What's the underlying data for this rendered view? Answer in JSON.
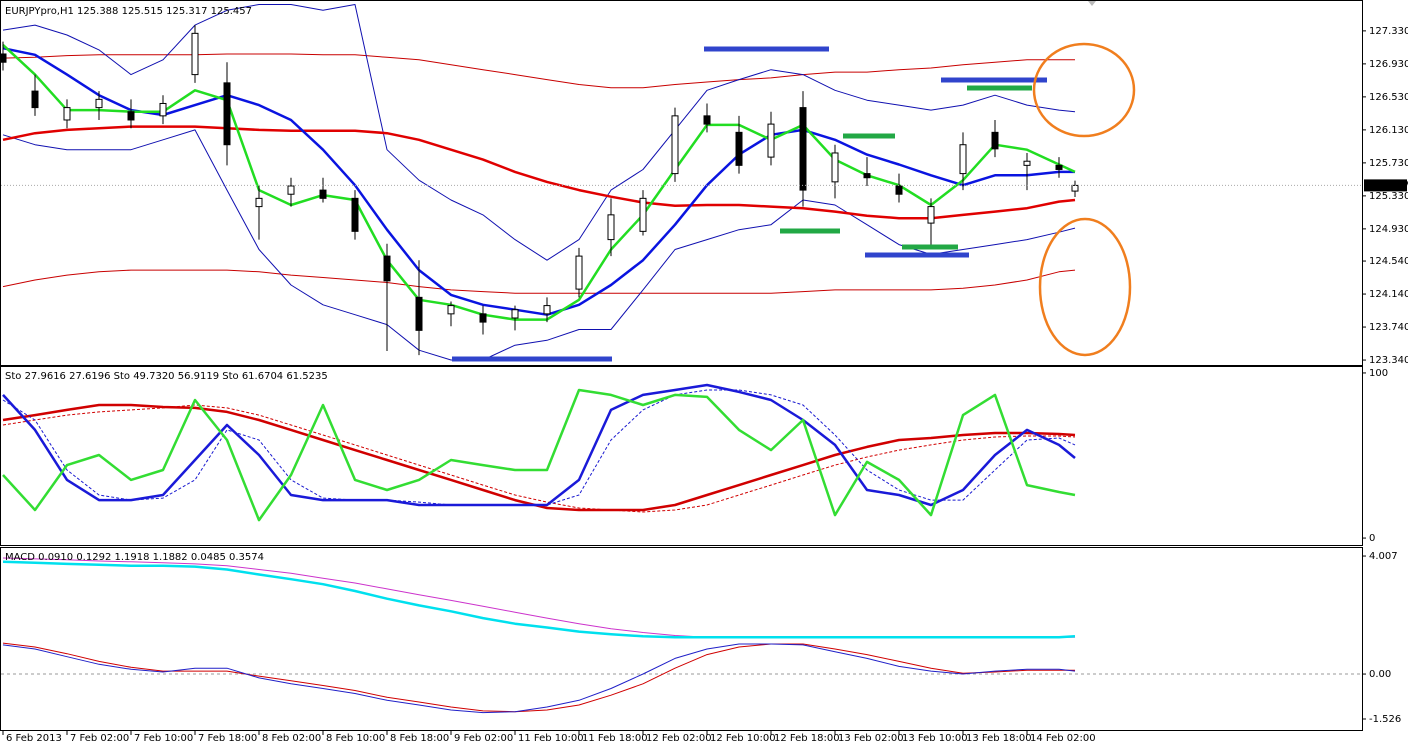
{
  "chart_data": [
    {
      "type": "candlestick",
      "title": "EURJPYpro,H1  125.388 125.515 125.317 125.457",
      "x": [
        0,
        4,
        8,
        12,
        16,
        20,
        24,
        28,
        32,
        36,
        40,
        44,
        48,
        52,
        56,
        60,
        64,
        68,
        72,
        76,
        80,
        84,
        88,
        92,
        96,
        100,
        104,
        108,
        112,
        116,
        120,
        124,
        128,
        132,
        134
      ],
      "xlim": [
        0,
        170
      ],
      "ylim": [
        123.28,
        127.68
      ],
      "yticks": [
        {
          "value": 127.33,
          "label": "127.330"
        },
        {
          "value": 126.93,
          "label": "126.930"
        },
        {
          "value": 126.53,
          "label": "126.530"
        },
        {
          "value": 126.13,
          "label": "126.130"
        },
        {
          "value": 125.73,
          "label": "125.730"
        },
        {
          "value": 125.33,
          "label": "125.330"
        },
        {
          "value": 124.93,
          "label": "124.930"
        },
        {
          "value": 124.54,
          "label": "124.540"
        },
        {
          "value": 124.14,
          "label": "124.140"
        },
        {
          "value": 123.74,
          "label": "123.740"
        },
        {
          "value": 123.34,
          "label": "123.340"
        }
      ],
      "last_price": 125.457,
      "up_color": "#ffffff",
      "down_color": "#000000",
      "candles": {
        "open": [
          127.05,
          126.6,
          126.25,
          126.4,
          126.35,
          126.3,
          126.8,
          126.7,
          125.2,
          125.35,
          125.4,
          125.3,
          124.6,
          124.1,
          123.9,
          123.9,
          123.85,
          123.9,
          124.2,
          124.8,
          124.9,
          125.6,
          126.3,
          126.1,
          125.8,
          126.4,
          125.5,
          125.6,
          125.45,
          125.0,
          125.6,
          126.1,
          125.7,
          125.7,
          125.388
        ],
        "high": [
          127.2,
          126.8,
          126.5,
          126.6,
          126.5,
          126.55,
          127.4,
          126.95,
          125.45,
          125.55,
          125.55,
          125.4,
          124.75,
          124.55,
          124.05,
          124.0,
          124.0,
          124.1,
          124.7,
          125.3,
          125.4,
          126.4,
          126.45,
          126.3,
          126.35,
          126.6,
          125.95,
          125.8,
          125.6,
          125.3,
          126.1,
          126.25,
          125.85,
          125.8,
          125.515
        ],
        "low": [
          126.85,
          126.3,
          126.15,
          126.25,
          126.15,
          126.2,
          126.7,
          125.7,
          124.8,
          125.2,
          125.25,
          124.8,
          123.45,
          123.4,
          123.75,
          123.65,
          123.7,
          123.8,
          124.1,
          124.6,
          124.85,
          125.5,
          126.1,
          125.6,
          125.7,
          125.2,
          125.3,
          125.45,
          125.25,
          124.7,
          125.4,
          125.8,
          125.4,
          125.55,
          125.317
        ],
        "close": [
          126.95,
          126.4,
          126.4,
          126.5,
          126.25,
          126.45,
          127.3,
          125.95,
          125.3,
          125.45,
          125.3,
          124.9,
          124.3,
          123.7,
          124.0,
          123.8,
          123.95,
          124.0,
          124.6,
          125.1,
          125.3,
          126.3,
          126.2,
          125.7,
          126.2,
          125.4,
          125.85,
          125.55,
          125.35,
          125.2,
          125.95,
          125.9,
          125.75,
          125.65,
          125.457
        ]
      },
      "series": [
        {
          "color": "#c80000",
          "width": 1,
          "values": [
            127.0,
            127.01,
            127.03,
            127.04,
            127.04,
            127.04,
            127.04,
            127.05,
            127.05,
            127.05,
            127.04,
            127.04,
            127.01,
            126.98,
            126.92,
            126.86,
            126.8,
            126.74,
            126.68,
            126.64,
            126.64,
            126.68,
            126.71,
            126.74,
            126.76,
            126.8,
            126.83,
            126.83,
            126.86,
            126.88,
            126.92,
            126.95,
            126.98,
            126.98,
            126.98
          ]
        },
        {
          "color": "#c80000",
          "width": 1,
          "values": [
            124.23,
            124.31,
            124.37,
            124.41,
            124.43,
            124.43,
            124.43,
            124.43,
            124.41,
            124.37,
            124.34,
            124.31,
            124.28,
            124.23,
            124.19,
            124.17,
            124.15,
            124.15,
            124.15,
            124.15,
            124.15,
            124.15,
            124.15,
            124.15,
            124.15,
            124.17,
            124.19,
            124.19,
            124.19,
            124.19,
            124.21,
            124.25,
            124.31,
            124.41,
            124.43
          ]
        },
        {
          "color": "#1010b0",
          "width": 1,
          "values": [
            127.34,
            127.4,
            127.28,
            127.1,
            126.8,
            126.98,
            127.4,
            127.58,
            127.65,
            127.65,
            127.58,
            127.65,
            125.89,
            125.52,
            125.28,
            125.1,
            124.8,
            124.55,
            124.8,
            125.4,
            125.65,
            126.13,
            126.61,
            126.74,
            126.86,
            126.8,
            126.61,
            126.49,
            126.43,
            126.37,
            126.43,
            126.55,
            126.43,
            126.37,
            126.35
          ]
        },
        {
          "color": "#1010b0",
          "width": 1,
          "values": [
            126.07,
            125.95,
            125.89,
            125.89,
            125.89,
            126.01,
            126.13,
            125.4,
            124.68,
            124.25,
            124.01,
            123.89,
            123.77,
            123.46,
            123.34,
            123.34,
            123.52,
            123.58,
            123.71,
            123.71,
            124.19,
            124.68,
            124.8,
            124.92,
            124.98,
            125.28,
            125.22,
            124.98,
            124.74,
            124.62,
            124.68,
            124.74,
            124.8,
            124.89,
            124.94
          ]
        },
        {
          "color": "#e00000",
          "width": 2.5,
          "values": [
            126.01,
            126.09,
            126.13,
            126.15,
            126.17,
            126.17,
            126.17,
            126.15,
            126.13,
            126.12,
            126.12,
            126.12,
            126.09,
            126.01,
            125.89,
            125.77,
            125.62,
            125.5,
            125.4,
            125.32,
            125.25,
            125.21,
            125.22,
            125.22,
            125.2,
            125.18,
            125.14,
            125.09,
            125.06,
            125.06,
            125.1,
            125.14,
            125.18,
            125.26,
            125.28
          ]
        },
        {
          "color": "#0a14e0",
          "width": 2.5,
          "values": [
            127.12,
            127.04,
            126.8,
            126.55,
            126.37,
            126.31,
            126.43,
            126.55,
            126.43,
            126.25,
            125.89,
            125.46,
            124.92,
            124.43,
            124.13,
            124.01,
            123.95,
            123.89,
            124.01,
            124.25,
            124.55,
            124.98,
            125.46,
            125.83,
            126.07,
            126.13,
            126.01,
            125.83,
            125.71,
            125.58,
            125.46,
            125.58,
            125.58,
            125.62,
            125.62
          ]
        },
        {
          "color": "#22dd22",
          "width": 2.5,
          "values": [
            127.16,
            126.8,
            126.37,
            126.37,
            126.35,
            126.35,
            126.61,
            126.49,
            125.4,
            125.22,
            125.34,
            125.28,
            124.55,
            124.07,
            124.01,
            123.89,
            123.83,
            123.83,
            124.07,
            124.68,
            125.1,
            125.65,
            126.19,
            126.19,
            126.01,
            126.19,
            125.77,
            125.58,
            125.46,
            125.22,
            125.52,
            125.95,
            125.89,
            125.71,
            125.62
          ]
        }
      ]
    },
    {
      "type": "line",
      "title": "Sto 27.9616 27.6196 Sto 49.7320 56.9119 Sto 61.6704 61.5235",
      "x": [
        0,
        4,
        8,
        12,
        16,
        20,
        24,
        28,
        32,
        36,
        40,
        44,
        48,
        52,
        56,
        60,
        64,
        68,
        72,
        76,
        80,
        84,
        88,
        92,
        96,
        100,
        104,
        108,
        112,
        116,
        120,
        124,
        128,
        132,
        134
      ],
      "xlim": [
        0,
        170
      ],
      "ylim": [
        -4.2,
        103.6
      ],
      "yticks": [
        100,
        0
      ],
      "series": [
        {
          "color": "#d00000",
          "width": 1,
          "dashed": true,
          "values": [
            68.5,
            71.5,
            74.5,
            76.4,
            77.6,
            78.8,
            80.6,
            78.8,
            74.5,
            68.5,
            62.4,
            56.4,
            50.3,
            44.2,
            38.2,
            32.1,
            26.1,
            21.8,
            18.2,
            17.0,
            15.8,
            17.0,
            20.0,
            26.1,
            32.1,
            38.2,
            44.2,
            49.1,
            53.3,
            56.4,
            59.4,
            61.2,
            61.8,
            61.8,
            61.2
          ]
        },
        {
          "color": "#d00000",
          "width": 2.5,
          "values": [
            71.5,
            74.5,
            77.6,
            80.6,
            80.6,
            79.4,
            78.8,
            76.4,
            71.5,
            65.5,
            59.4,
            53.3,
            47.3,
            41.2,
            35.2,
            29.1,
            23.0,
            18.2,
            17.0,
            17.0,
            17.0,
            20.0,
            26.1,
            32.1,
            38.2,
            44.2,
            50.3,
            55.2,
            59.4,
            60.6,
            62.4,
            63.6,
            63.6,
            63.0,
            62.4
          ]
        },
        {
          "color": "#1a1ad0",
          "width": 1,
          "dashed": true,
          "values": [
            83.6,
            71.5,
            41.2,
            26.1,
            23.0,
            24.2,
            35.2,
            65.5,
            59.4,
            35.2,
            24.2,
            23.0,
            23.0,
            21.8,
            20.0,
            20.0,
            20.0,
            20.0,
            26.1,
            59.4,
            77.6,
            86.7,
            89.7,
            89.7,
            86.7,
            80.6,
            62.4,
            41.2,
            29.1,
            23.0,
            23.0,
            41.2,
            59.4,
            60.6,
            56.4
          ]
        },
        {
          "color": "#1a1ad8",
          "width": 2.5,
          "values": [
            86.7,
            65.5,
            35.2,
            23.0,
            23.0,
            26.1,
            47.3,
            68.5,
            50.3,
            26.1,
            23.0,
            23.0,
            23.0,
            20.0,
            20.0,
            20.0,
            20.0,
            20.0,
            35.2,
            77.6,
            86.7,
            89.7,
            92.7,
            88.5,
            83.6,
            71.5,
            56.4,
            29.1,
            26.1,
            20.0,
            29.1,
            50.3,
            65.5,
            56.4,
            48.5
          ]
        },
        {
          "color": "#33dd33",
          "width": 2.5,
          "values": [
            38.2,
            17.0,
            44.2,
            50.3,
            35.2,
            41.2,
            83.6,
            59.4,
            10.9,
            38.2,
            80.6,
            35.2,
            29.1,
            35.2,
            47.3,
            44.2,
            41.2,
            41.2,
            89.7,
            86.7,
            80.6,
            86.7,
            85.5,
            65.5,
            53.3,
            71.5,
            13.9,
            46.1,
            35.2,
            13.9,
            74.5,
            86.7,
            32.1,
            27.9,
            26.1
          ]
        }
      ]
    },
    {
      "type": "line",
      "title": "MACD 0.0910 0.1292 1.1918 1.1882 0.0485 0.3574",
      "x": [
        0,
        4,
        8,
        12,
        16,
        20,
        24,
        28,
        32,
        36,
        40,
        44,
        48,
        52,
        56,
        60,
        64,
        68,
        72,
        76,
        80,
        84,
        88,
        92,
        96,
        100,
        104,
        108,
        112,
        116,
        120,
        124,
        128,
        132,
        134
      ],
      "xlim": [
        0,
        170
      ],
      "ylim": [
        -1.9,
        4.28
      ],
      "yticks": [
        4.007,
        {
          "value": 0,
          "label": "0.00"
        },
        -1.526
      ],
      "zero_line": true,
      "xticks": [
        {
          "value": 0,
          "label": "6 Feb 2013"
        },
        {
          "value": 8,
          "label": "7 Feb 02:00"
        },
        {
          "value": 16,
          "label": "7 Feb 10:00"
        },
        {
          "value": 24,
          "label": "7 Feb 18:00"
        },
        {
          "value": 32,
          "label": "8 Feb 02:00"
        },
        {
          "value": 40,
          "label": "8 Feb 10:00"
        },
        {
          "value": 48,
          "label": "8 Feb 18:00"
        },
        {
          "value": 56,
          "label": "9 Feb 02:00"
        },
        {
          "value": 64,
          "label": "11 Feb 10:00"
        },
        {
          "value": 72,
          "label": "11 Feb 18:00"
        },
        {
          "value": 80,
          "label": "12 Feb 02:00"
        },
        {
          "value": 88,
          "label": "12 Feb 10:00"
        },
        {
          "value": 96,
          "label": "12 Feb 18:00"
        },
        {
          "value": 104,
          "label": "13 Feb 02:00"
        },
        {
          "value": 112,
          "label": "13 Feb 10:00"
        },
        {
          "value": 120,
          "label": "13 Feb 18:00"
        },
        {
          "value": 128,
          "label": "14 Feb 02:00"
        }
      ],
      "series": [
        {
          "color": "#cc33cc",
          "width": 1,
          "values": [
            3.94,
            3.91,
            3.88,
            3.84,
            3.81,
            3.78,
            3.74,
            3.68,
            3.55,
            3.42,
            3.25,
            3.09,
            2.89,
            2.69,
            2.5,
            2.3,
            2.1,
            1.9,
            1.71,
            1.54,
            1.41,
            1.31,
            1.25,
            1.25,
            1.25,
            1.25,
            1.25,
            1.25,
            1.25,
            1.25,
            1.25,
            1.25,
            1.25,
            1.25,
            1.25
          ]
        },
        {
          "color": "#00e0ee",
          "width": 2.5,
          "values": [
            3.81,
            3.78,
            3.74,
            3.71,
            3.68,
            3.68,
            3.65,
            3.55,
            3.38,
            3.22,
            3.05,
            2.82,
            2.56,
            2.33,
            2.13,
            1.9,
            1.71,
            1.58,
            1.44,
            1.35,
            1.28,
            1.25,
            1.25,
            1.25,
            1.25,
            1.25,
            1.25,
            1.25,
            1.25,
            1.25,
            1.25,
            1.25,
            1.25,
            1.25,
            1.28
          ]
        },
        {
          "color": "#d00000",
          "width": 1,
          "values": [
            1.05,
            0.92,
            0.69,
            0.43,
            0.23,
            0.1,
            0.1,
            0.1,
            -0.07,
            -0.23,
            -0.39,
            -0.56,
            -0.79,
            -0.95,
            -1.12,
            -1.25,
            -1.28,
            -1.22,
            -1.05,
            -0.72,
            -0.33,
            0.2,
            0.66,
            0.92,
            1.02,
            1.02,
            0.85,
            0.66,
            0.43,
            0.2,
            0.03,
            0.07,
            0.13,
            0.13,
            0.13
          ]
        },
        {
          "color": "#2020c8",
          "width": 1,
          "values": [
            0.99,
            0.85,
            0.59,
            0.33,
            0.16,
            0.07,
            0.2,
            0.2,
            -0.13,
            -0.33,
            -0.49,
            -0.66,
            -0.89,
            -1.05,
            -1.22,
            -1.31,
            -1.28,
            -1.12,
            -0.89,
            -0.49,
            0.0,
            0.53,
            0.85,
            1.02,
            1.02,
            0.99,
            0.76,
            0.53,
            0.26,
            0.1,
            0.0,
            0.1,
            0.16,
            0.16,
            0.1
          ]
        }
      ]
    }
  ]
}
